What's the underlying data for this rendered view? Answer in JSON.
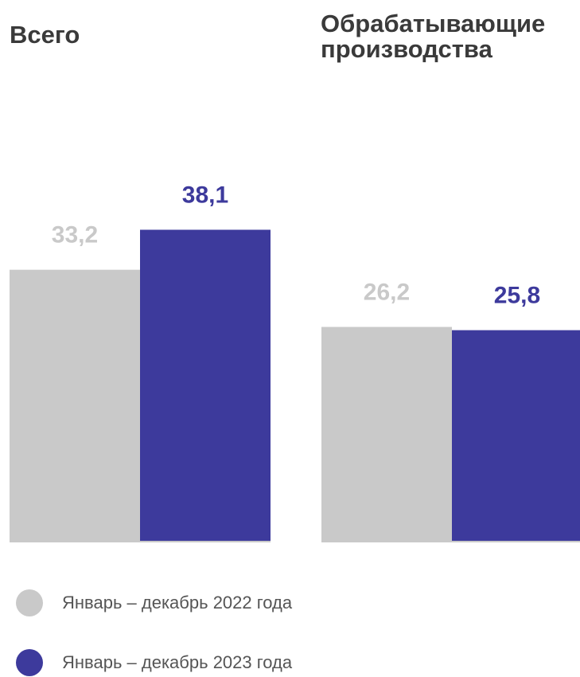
{
  "colors": {
    "series_2022": "#c9c9c9",
    "series_2023": "#3d3a9c",
    "label_2022": "#c9c9c9",
    "label_2023": "#3d3a9c",
    "axis_line": "#c9c9c9"
  },
  "chart_data": [
    {
      "type": "bar",
      "title": "Всего",
      "categories": [
        "Всего"
      ],
      "series": [
        {
          "name": "Январь – декабрь 2022 года",
          "values": [
            33.2
          ],
          "labels": [
            "33,2"
          ]
        },
        {
          "name": "Январь – декабрь 2023 года",
          "values": [
            38.1
          ],
          "labels": [
            "38,1"
          ]
        }
      ],
      "ylim": [
        0,
        46
      ],
      "grid": false,
      "legend": "bottom-left"
    },
    {
      "type": "bar",
      "title": "Обрабатывающие производства",
      "categories": [
        "Обрабатывающие производства"
      ],
      "series": [
        {
          "name": "Январь – декабрь 2022 года",
          "values": [
            26.2
          ],
          "labels": [
            "26,2"
          ]
        },
        {
          "name": "Январь – декабрь 2023 года",
          "values": [
            25.8
          ],
          "labels": [
            "25,8"
          ]
        }
      ],
      "ylim": [
        0,
        46
      ],
      "grid": false,
      "legend": "bottom-left"
    }
  ],
  "legend": {
    "items": [
      {
        "label": "Январь – декабрь 2022 года"
      },
      {
        "label": "Январь – декабрь 2023 года"
      }
    ]
  }
}
